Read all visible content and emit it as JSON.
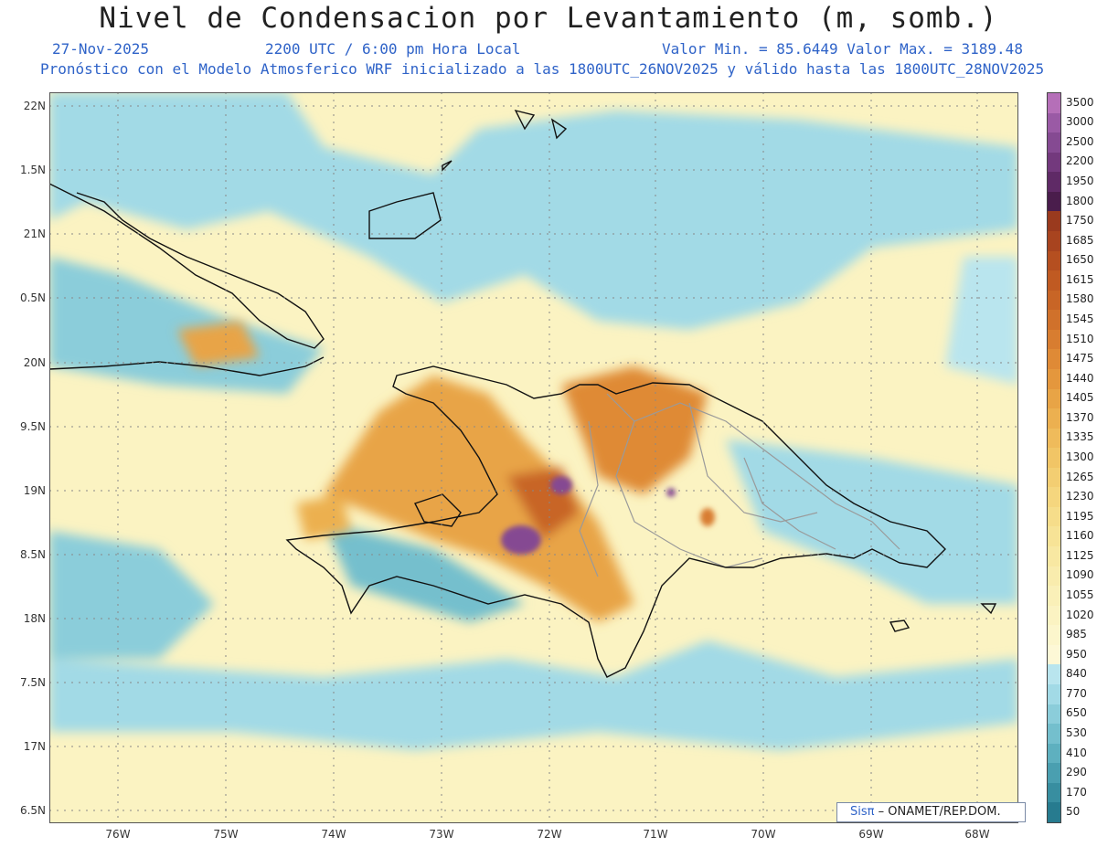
{
  "header": {
    "title": "Nivel de Condensacion por Levantamiento (m, somb.)",
    "date": "27-Nov-2025",
    "time": "2200 UTC / 6:00 pm Hora Local",
    "minmax": "Valor Min. = 85.6449   Valor Max. = 3189.48",
    "forecast": "Pronóstico con el Modelo Atmosferico WRF inicializado a las 1800UTC_26NOV2025 y válido hasta las  1800UTC_28NOV2025"
  },
  "axes": {
    "y_labels": [
      "22N",
      "1.5N",
      "21N",
      "0.5N",
      "20N",
      "9.5N",
      "19N",
      "8.5N",
      "18N",
      "7.5N",
      "17N",
      "6.5N"
    ],
    "x_labels": [
      "76W",
      "75W",
      "74W",
      "73W",
      "72W",
      "71W",
      "70W",
      "69W",
      "68W"
    ]
  },
  "colorbar": {
    "labels": [
      "3500",
      "3000",
      "2500",
      "2200",
      "1950",
      "1800",
      "1750",
      "1685",
      "1650",
      "1615",
      "1580",
      "1545",
      "1510",
      "1475",
      "1440",
      "1405",
      "1370",
      "1335",
      "1300",
      "1265",
      "1230",
      "1195",
      "1160",
      "1125",
      "1090",
      "1055",
      "1020",
      "985",
      "950",
      "840",
      "770",
      "650",
      "530",
      "410",
      "290",
      "170",
      "50"
    ],
    "colors": [
      "#b56fb8",
      "#9a5aa5",
      "#854a92",
      "#73397d",
      "#5f2a66",
      "#4a1d4c",
      "#9a3a1e",
      "#a8441f",
      "#b54f20",
      "#c05a22",
      "#c86526",
      "#d0712b",
      "#d87d30",
      "#df8a36",
      "#e4973d",
      "#e8a446",
      "#ecb050",
      "#efbb5b",
      "#f1c566",
      "#f3ce72",
      "#f5d67e",
      "#f6dd8a",
      "#f7e396",
      "#f8e8a2",
      "#f9ecad",
      "#faf0b8",
      "#fbf3c2",
      "#fcf6cc",
      "#fdf8d6",
      "#b9e5ee",
      "#a2dae6",
      "#8bcdda",
      "#74bfcd",
      "#5eb0bf",
      "#4a9fb0",
      "#388ea0",
      "#277b8f"
    ]
  },
  "credit": {
    "sis": "Sisπ",
    "text": " – ONAMET/REP.DOM."
  }
}
